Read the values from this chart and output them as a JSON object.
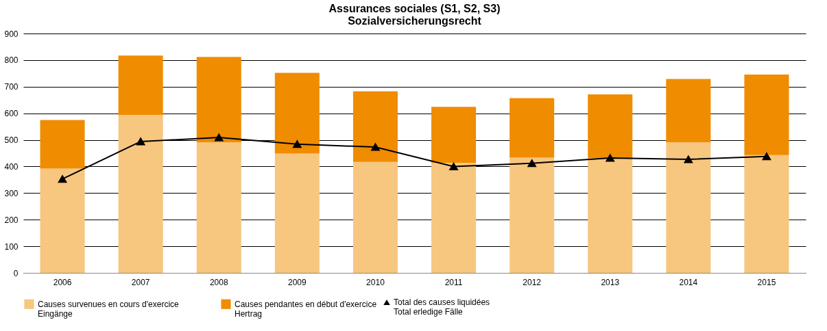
{
  "chart_data": {
    "type": "bar",
    "title": [
      "Assurances sociales (S1, S2, S3)",
      "Sozialversicherungsrecht"
    ],
    "categories": [
      "2006",
      "2007",
      "2008",
      "2009",
      "2010",
      "2011",
      "2012",
      "2013",
      "2014",
      "2015"
    ],
    "stacked": true,
    "series": [
      {
        "name": "Causes survenues en cours d'exercice\nEingänge",
        "color": "#f7c67f",
        "values": [
          392,
          594,
          491,
          449,
          417,
          414,
          433,
          431,
          491,
          443
        ]
      },
      {
        "name": "Causes pendantes en début d'exercice\nHertrag",
        "color": "#f08c00",
        "values": [
          183,
          223,
          321,
          303,
          266,
          210,
          224,
          240,
          238,
          303
        ]
      },
      {
        "name": "Total des causes liquidées\nTotal erledige Fälle",
        "color": "#000000",
        "type": "line",
        "marker": "triangle",
        "values": [
          353,
          494,
          509,
          484,
          473,
          400,
          412,
          432,
          427,
          438
        ]
      }
    ],
    "ylim": [
      0,
      900
    ],
    "yticks": [
      0,
      100,
      200,
      300,
      400,
      500,
      600,
      700,
      800,
      900
    ],
    "grid": "y",
    "legend": "bottom"
  }
}
